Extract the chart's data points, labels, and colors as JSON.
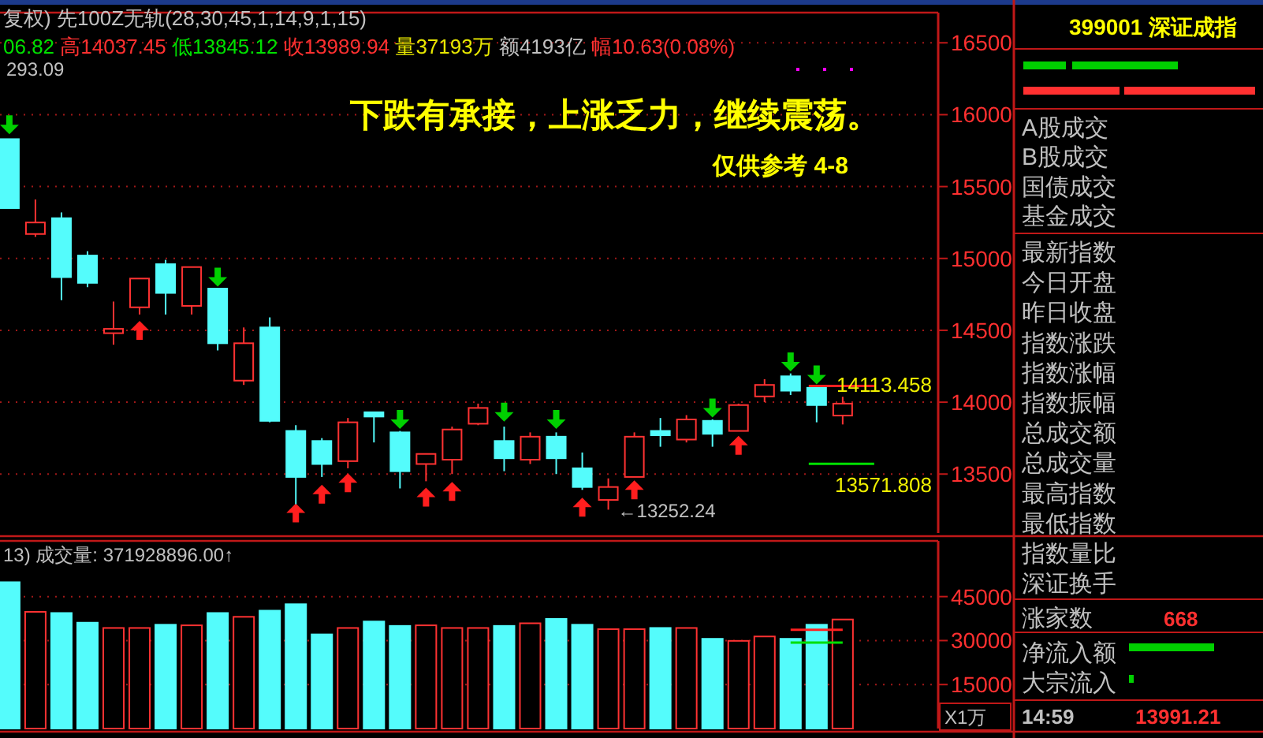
{
  "chart_data": [
    {
      "type": "candlestick",
      "title": "复权)  先100Z无轨(28,30,45,1,14,9,1,15)",
      "subtitle": "06.82 高14037.45 低13845.12 收13989.94 量37193万 额4193亿 幅10.63(0.08%)",
      "categories": [
        null,
        null,
        null,
        null,
        null,
        null,
        null,
        null,
        null,
        null,
        null,
        null,
        null,
        null,
        null,
        null,
        null,
        null,
        null,
        null,
        null,
        null,
        null,
        null,
        null,
        null,
        null,
        null,
        null,
        null,
        null,
        null,
        null
      ],
      "ohlc": [
        [
          15830,
          15830,
          15350,
          15350
        ],
        [
          15170,
          15410,
          15150,
          15250
        ],
        [
          15280,
          15320,
          14710,
          14870
        ],
        [
          15020,
          15050,
          14800,
          14830
        ],
        [
          14480,
          14700,
          14400,
          14510
        ],
        [
          14660,
          14860,
          14610,
          14860
        ],
        [
          14960,
          14990,
          14610,
          14760
        ],
        [
          14670,
          14940,
          14610,
          14940
        ],
        [
          14790,
          14790,
          14360,
          14410
        ],
        [
          14150,
          14520,
          14120,
          14410
        ],
        [
          14520,
          14590,
          13860,
          13870
        ],
        [
          13800,
          13840,
          13290,
          13480
        ],
        [
          13730,
          13750,
          13480,
          13570
        ],
        [
          13590,
          13890,
          13540,
          13860
        ],
        [
          13930,
          13930,
          13720,
          13900
        ],
        [
          13790,
          13800,
          13400,
          13520
        ],
        [
          13570,
          13640,
          13450,
          13640
        ],
        [
          13600,
          13830,
          13500,
          13810
        ],
        [
          13850,
          13990,
          13840,
          13960
        ],
        [
          13730,
          13830,
          13520,
          13610
        ],
        [
          13600,
          13790,
          13570,
          13760
        ],
        [
          13760,
          13790,
          13500,
          13610
        ],
        [
          13540,
          13650,
          13390,
          13410
        ],
        [
          13320,
          13470,
          13252.24,
          13410
        ],
        [
          13480,
          13790,
          13480,
          13760
        ],
        [
          13800,
          13890,
          13690,
          13770
        ],
        [
          13740,
          13910,
          13720,
          13880
        ],
        [
          13870,
          13880,
          13690,
          13780
        ],
        [
          13800,
          13990,
          13800,
          13980
        ],
        [
          14040,
          14160,
          14000,
          14120
        ],
        [
          14180,
          14200,
          14050,
          14080
        ],
        [
          14100,
          14110,
          13860,
          13980
        ],
        [
          13906.82,
          14037.45,
          13845.12,
          13989.94
        ]
      ],
      "colors": [
        "#54fcfc",
        "#ff3232",
        "#54fcfc",
        "#54fcfc",
        "#ff3232",
        "#ff3232",
        "#54fcfc",
        "#ff3232",
        "#54fcfc",
        "#ff3232",
        "#54fcfc",
        "#54fcfc",
        "#54fcfc",
        "#ff3232",
        "#54fcfc",
        "#54fcfc",
        "#ff3232",
        "#ff3232",
        "#ff3232",
        "#54fcfc",
        "#ff3232",
        "#54fcfc",
        "#54fcfc",
        "#ff3232",
        "#ff3232",
        "#54fcfc",
        "#ff3232",
        "#54fcfc",
        "#ff3232",
        "#ff3232",
        "#54fcfc",
        "#54fcfc",
        "#ff3232"
      ],
      "series": [
        {
          "type": "scatter",
          "marker": "triangle",
          "color": "#ff1e1e",
          "values": [
            null,
            null,
            null,
            null,
            null,
            14500,
            null,
            null,
            null,
            null,
            null,
            13230,
            13360,
            13440,
            null,
            null,
            13340,
            13380,
            null,
            null,
            null,
            null,
            13270,
            null,
            13390,
            null,
            null,
            null,
            13700,
            null,
            null,
            null,
            null
          ]
        },
        {
          "type": "scatter",
          "marker": "triangle-down",
          "color": "#00d000",
          "values": [
            15930,
            null,
            null,
            null,
            null,
            null,
            null,
            null,
            14870,
            null,
            null,
            null,
            null,
            null,
            null,
            13880,
            null,
            null,
            null,
            13930,
            null,
            13880,
            null,
            null,
            null,
            null,
            null,
            13960,
            null,
            null,
            14280,
            14190,
            null
          ]
        }
      ],
      "ylim": [
        13090,
        16710
      ],
      "yticks": [
        13500,
        14000,
        14500,
        15000,
        15500,
        16000,
        16500
      ],
      "grid": "y",
      "tick_labels": "y",
      "ref_lines": [
        {
          "axis": "y",
          "value": 14113.458,
          "label": "14113.458",
          "color": "#ff2020"
        },
        {
          "axis": "y",
          "value": 13571.808,
          "label": "13571.808",
          "color": "#00e000"
        }
      ],
      "annotations": [
        "293.09",
        "下跌有承接，上涨乏力，继续震荡。",
        "仅供参考  4-8",
        "←13252.24"
      ]
    },
    {
      "type": "bar",
      "title": "13) 成交量: 371928896.00↑",
      "ylabel": "X1万",
      "categories": [
        null,
        null,
        null,
        null,
        null,
        null,
        null,
        null,
        null,
        null,
        null,
        null,
        null,
        null,
        null,
        null,
        null,
        null,
        null,
        null,
        null,
        null,
        null,
        null,
        null,
        null,
        null,
        null,
        null,
        null,
        null,
        null,
        null
      ],
      "values": [
        49900,
        39800,
        39400,
        36100,
        34300,
        34300,
        35400,
        35200,
        39400,
        38100,
        40200,
        42400,
        32100,
        34300,
        36500,
        35000,
        35200,
        34300,
        34300,
        35000,
        35900,
        37400,
        35400,
        33900,
        33900,
        34300,
        34300,
        30600,
        29900,
        31400,
        30600,
        35400,
        37193
      ],
      "colors": [
        "#54fcfc",
        "#ff3232",
        "#54fcfc",
        "#54fcfc",
        "#ff3232",
        "#ff3232",
        "#54fcfc",
        "#ff3232",
        "#54fcfc",
        "#ff3232",
        "#54fcfc",
        "#54fcfc",
        "#54fcfc",
        "#ff3232",
        "#54fcfc",
        "#54fcfc",
        "#ff3232",
        "#ff3232",
        "#ff3232",
        "#54fcfc",
        "#ff3232",
        "#54fcfc",
        "#54fcfc",
        "#ff3232",
        "#ff3232",
        "#54fcfc",
        "#ff3232",
        "#54fcfc",
        "#ff3232",
        "#ff3232",
        "#54fcfc",
        "#54fcfc",
        "#ff3232"
      ],
      "ylim": [
        0,
        64000
      ],
      "yticks": [
        15000,
        30000,
        45000
      ],
      "grid": "y",
      "tick_labels": "y",
      "series": [
        {
          "type": "line",
          "color": "#ff2020",
          "values": [
            null,
            null,
            null,
            null,
            null,
            null,
            null,
            null,
            null,
            null,
            null,
            null,
            null,
            null,
            null,
            null,
            null,
            null,
            null,
            null,
            null,
            null,
            null,
            null,
            null,
            null,
            null,
            null,
            null,
            null,
            33700,
            33700,
            33700
          ]
        },
        {
          "type": "line",
          "color": "#00e000",
          "values": [
            null,
            null,
            null,
            null,
            null,
            null,
            null,
            null,
            null,
            null,
            null,
            null,
            null,
            null,
            null,
            null,
            null,
            null,
            null,
            null,
            null,
            null,
            null,
            null,
            null,
            null,
            null,
            null,
            null,
            null,
            29300,
            29300,
            29300
          ]
        }
      ]
    },
    {
      "type": "other",
      "title": "399001 深证成指",
      "annotations": [
        "A股成交",
        "B股成交",
        "国债成交",
        "基金成交",
        "最新指数",
        "今日开盘",
        "昨日收盘",
        "指数涨跌",
        "指数涨幅",
        "指数振幅",
        "总成交额",
        "总成交量",
        "最高指数",
        "最低指数",
        "指数量比",
        "深证换手",
        "涨家数",
        "668",
        "净流入额",
        "大宗流入",
        "14:59",
        "13991.21"
      ]
    }
  ]
}
